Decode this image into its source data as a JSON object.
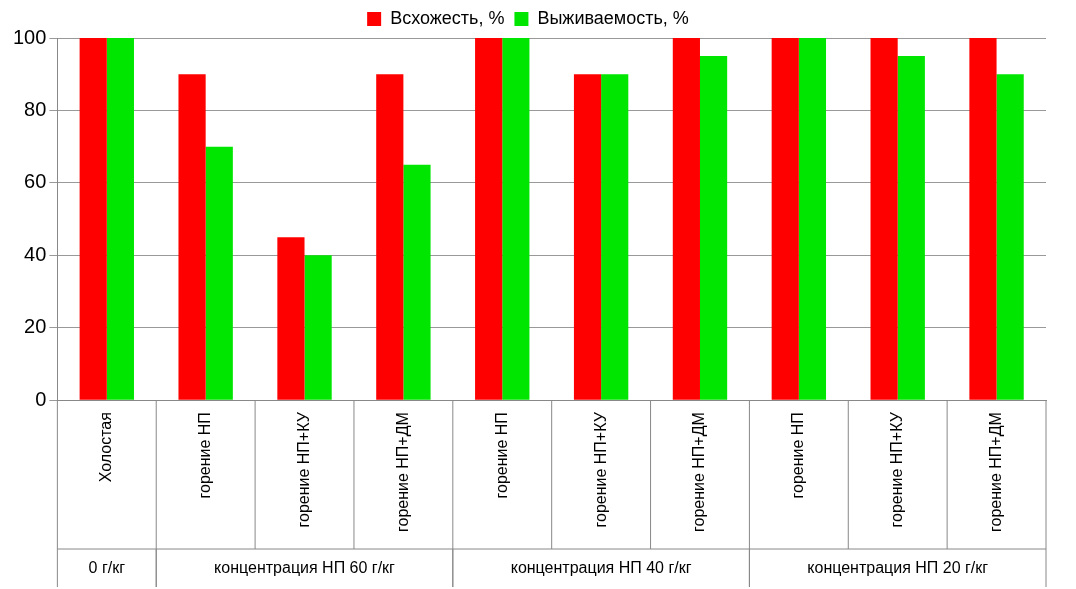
{
  "chart_data": {
    "type": "bar",
    "categories": [
      "Холостая",
      "горение НП",
      "горение НП+КУ",
      "горение НП+ДМ",
      "горение НП",
      "горение НП+КУ",
      "горение НП+ДМ",
      "горение НП",
      "горение НП+КУ",
      "горение НП+ДМ"
    ],
    "series": [
      {
        "name": "Всхожесть, %",
        "color": "#ff0000",
        "values": [
          100,
          90,
          45,
          90,
          100,
          90,
          100,
          100,
          100,
          100
        ]
      },
      {
        "name": "Выживаемость, %",
        "color": "#00e600",
        "values": [
          100,
          70,
          40,
          65,
          100,
          90,
          95,
          100,
          95,
          90
        ]
      }
    ],
    "ylim": [
      0,
      100
    ],
    "yticks": [
      0,
      20,
      40,
      60,
      80,
      100
    ],
    "grid": "y",
    "legend": "top",
    "annotations": [
      "0 г/кг",
      "концентрация НП 60 г/кг",
      "концентрация НП 40 г/кг",
      "концентрация НП 20 г/кг"
    ]
  }
}
